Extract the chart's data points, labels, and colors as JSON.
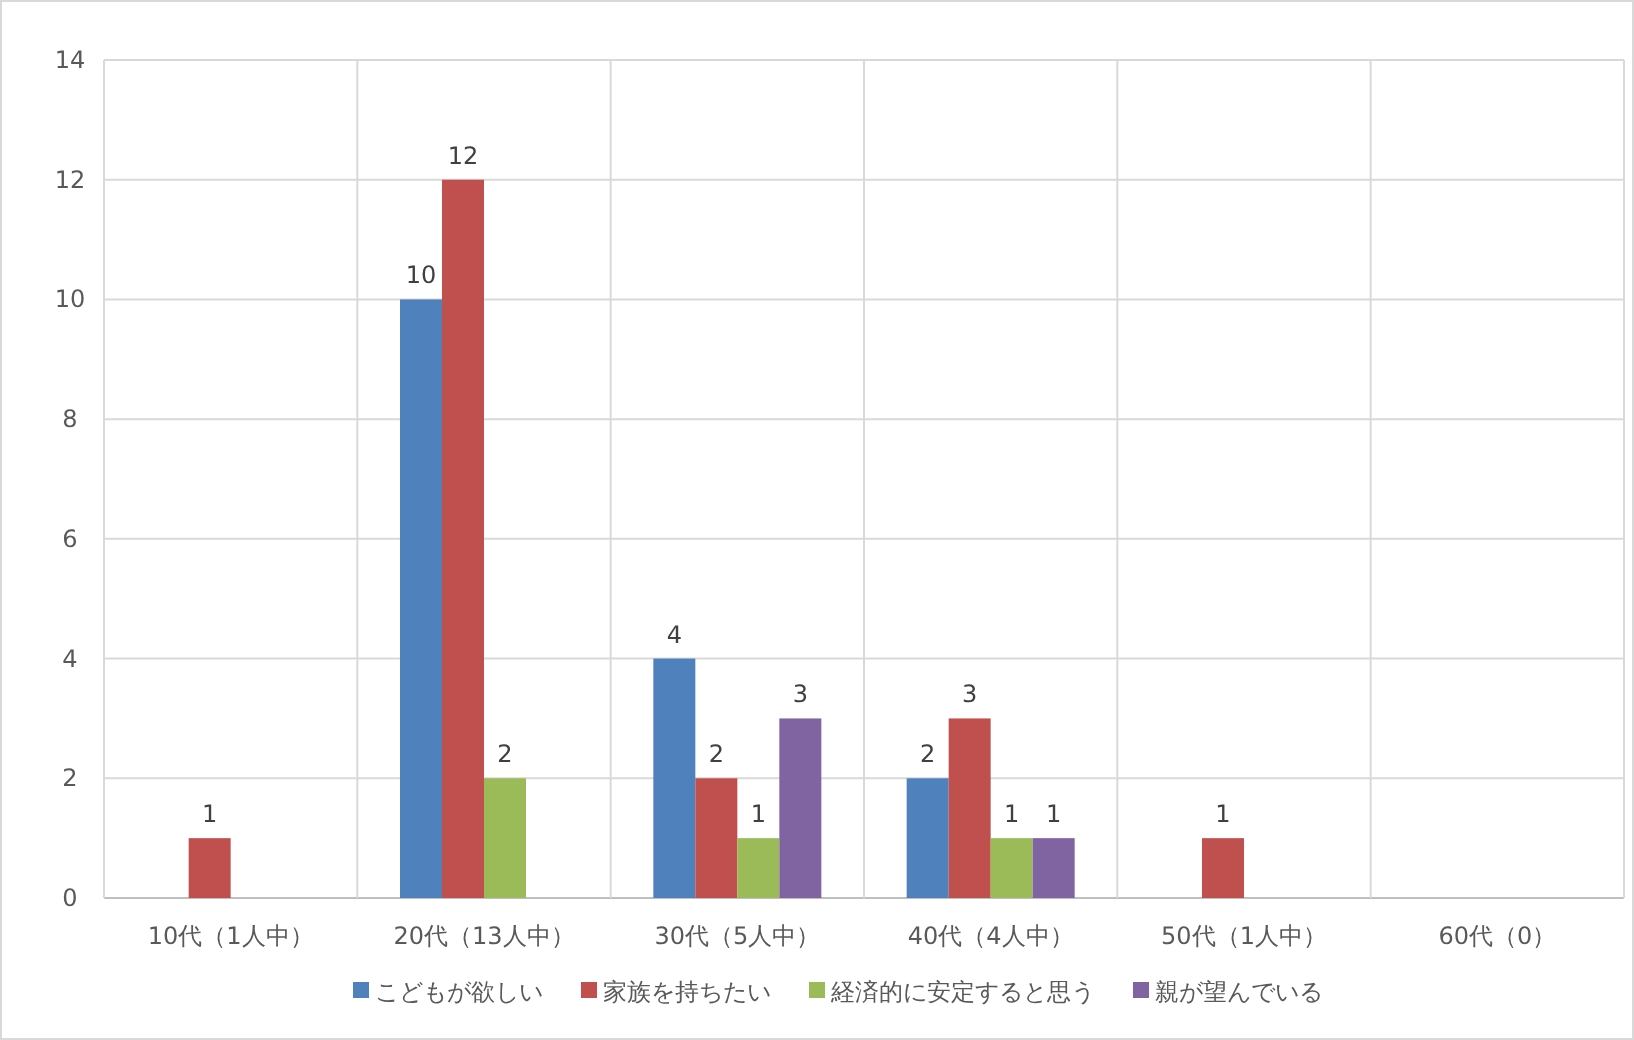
{
  "chart_data": {
    "type": "bar",
    "categories": [
      "10代（1人中）",
      "20代（13人中）",
      "30代（5人中）",
      "40代（4人中）",
      "50代（1人中）",
      "60代（0）"
    ],
    "series": [
      {
        "name": "こどもが欲しい",
        "color": "#4f81bd",
        "values": [
          null,
          10,
          4,
          2,
          null,
          null
        ]
      },
      {
        "name": "家族を持ちたい",
        "color": "#c0504d",
        "values": [
          1,
          12,
          2,
          3,
          1,
          null
        ]
      },
      {
        "name": "経済的に安定すると思う",
        "color": "#9bbb59",
        "values": [
          null,
          2,
          1,
          1,
          null,
          null
        ]
      },
      {
        "name": "親が望んでいる",
        "color": "#8064a2",
        "values": [
          null,
          null,
          3,
          1,
          null,
          null
        ]
      }
    ],
    "ylim": [
      0,
      14
    ],
    "yticks": [
      0,
      2,
      4,
      6,
      8,
      10,
      12,
      14
    ],
    "grid": true,
    "legend": "bottom",
    "data_labels": true
  }
}
